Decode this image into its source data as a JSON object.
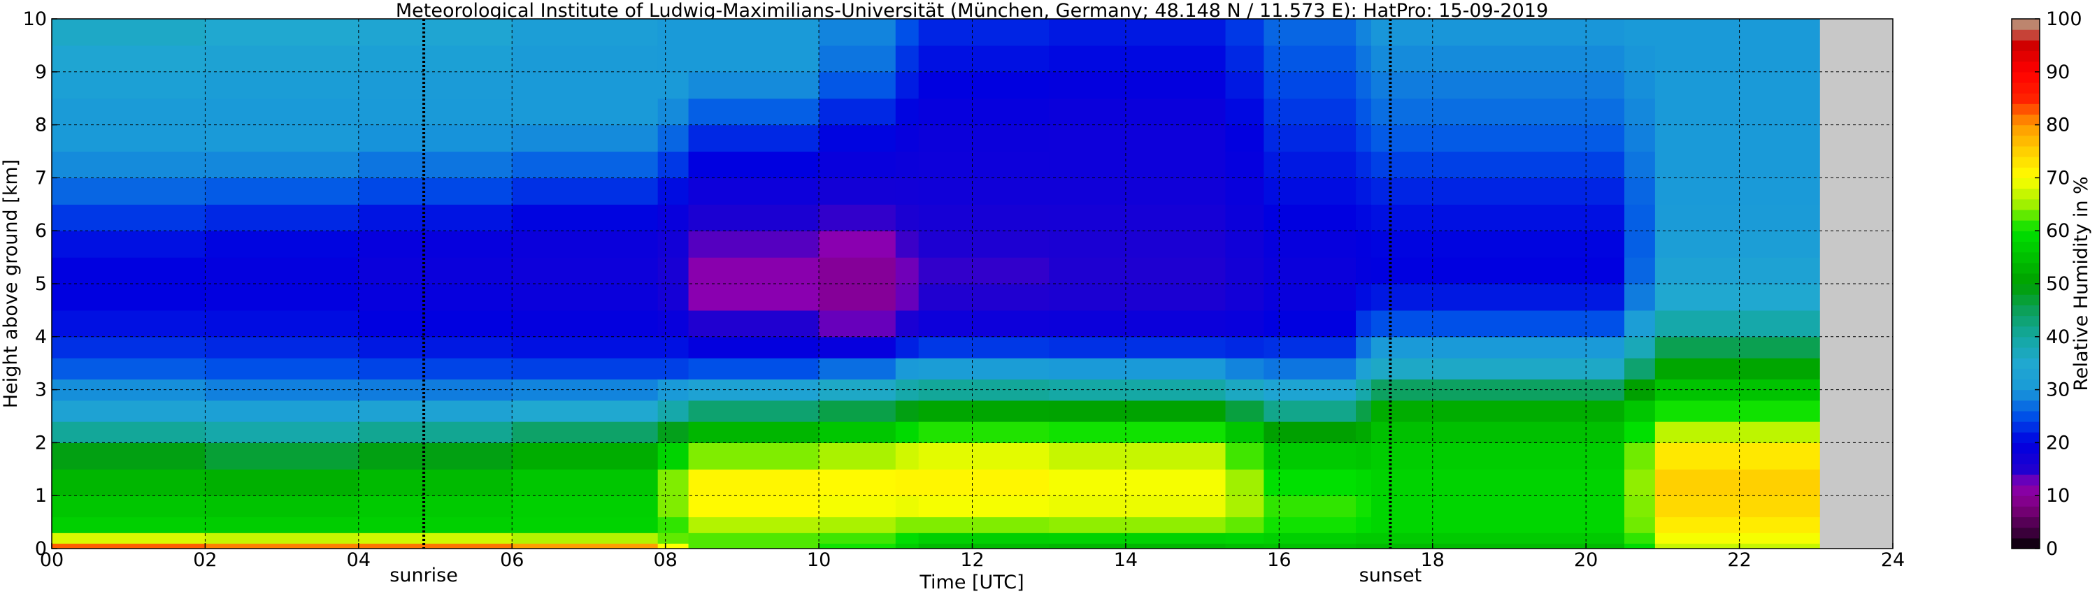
{
  "chart_data": {
    "type": "heatmap",
    "title": "Meteorological Institute of Ludwig-Maximilians-Universität (München, Germany; 48.148 N / 11.573 E):    HatPro: 15-09-2019",
    "xlabel": "Time [UTC]",
    "ylabel": "Height above ground [km]",
    "colorbar_label": "Relative Humidity in %",
    "xlim": [
      0,
      24
    ],
    "ylim": [
      0,
      10
    ],
    "x_ticks": [
      "00",
      "02",
      "04",
      "06",
      "08",
      "10",
      "12",
      "14",
      "16",
      "18",
      "20",
      "22",
      "24"
    ],
    "y_ticks": [
      "0",
      "1",
      "2",
      "3",
      "4",
      "5",
      "6",
      "7",
      "8",
      "9",
      "10"
    ],
    "colorbar_ticks": [
      "0",
      "10",
      "20",
      "30",
      "40",
      "50",
      "60",
      "70",
      "80",
      "90",
      "100"
    ],
    "colorbar_range": [
      0,
      100
    ],
    "annotations": [
      {
        "text": "sunrise",
        "x": 4.85
      },
      {
        "text": "sunset",
        "x": 17.45
      }
    ],
    "data_end_time": 23.05,
    "missing_color": "#c8c8c8",
    "grid": true,
    "heights_km": [
      0,
      0.1,
      0.3,
      0.6,
      1.0,
      1.5,
      2.0,
      2.4,
      2.8,
      3.2,
      3.6,
      4.0,
      4.5,
      5.0,
      5.5,
      6.0,
      6.5,
      7.0,
      7.5,
      8.0,
      8.5,
      9.0,
      9.5,
      10
    ],
    "profiles": [
      {
        "time": 0.0,
        "rh": [
          88,
          80,
          58,
          58,
          56,
          54,
          48,
          36,
          32,
          28,
          24,
          22,
          20,
          20,
          20,
          22,
          26,
          28,
          30,
          30,
          32,
          34,
          36,
          38
        ]
      },
      {
        "time": 2.0,
        "rh": [
          86,
          76,
          58,
          56,
          54,
          50,
          44,
          34,
          30,
          27,
          24,
          22,
          20,
          20,
          20,
          22,
          24,
          28,
          30,
          30,
          30,
          32,
          34,
          36
        ]
      },
      {
        "time": 4.0,
        "rh": [
          86,
          76,
          58,
          56,
          56,
          50,
          44,
          34,
          30,
          26,
          23,
          21,
          20,
          19,
          19,
          20,
          24,
          27,
          30,
          30,
          30,
          32,
          34,
          36
        ]
      },
      {
        "time": 6.0,
        "rh": [
          86,
          78,
          58,
          58,
          56,
          54,
          48,
          38,
          30,
          26,
          22,
          20,
          19,
          18,
          18,
          19,
          22,
          25,
          28,
          30,
          30,
          30,
          32,
          33
        ]
      },
      {
        "time": 7.9,
        "rh": [
          84,
          70,
          58,
          58,
          58,
          56,
          50,
          40,
          32,
          26,
          22,
          20,
          19,
          18,
          18,
          19,
          21,
          24,
          28,
          30,
          30,
          30,
          30,
          30
        ]
      },
      {
        "time": 8.3,
        "rh": [
          64,
          62,
          62,
          68,
          72,
          70,
          56,
          48,
          36,
          26,
          22,
          20,
          16,
          14,
          15,
          17,
          18,
          20,
          22,
          26,
          30,
          30,
          30,
          30
        ]
      },
      {
        "time": 10.0,
        "rh": [
          62,
          62,
          64,
          70,
          72,
          70,
          60,
          50,
          40,
          30,
          22,
          14,
          10,
          8,
          10,
          12,
          16,
          18,
          20,
          22,
          26,
          30,
          30,
          30
        ]
      },
      {
        "time": 11.0,
        "rh": [
          58,
          60,
          62,
          66,
          70,
          70,
          62,
          52,
          42,
          32,
          24,
          16,
          12,
          10,
          12,
          14,
          16,
          18,
          19,
          20,
          22,
          24,
          26,
          28
        ]
      },
      {
        "time": 11.3,
        "rh": [
          54,
          56,
          60,
          68,
          72,
          72,
          66,
          56,
          46,
          36,
          28,
          20,
          16,
          14,
          15,
          16,
          17,
          18,
          18,
          19,
          20,
          21,
          22,
          24
        ]
      },
      {
        "time": 13.0,
        "rh": [
          52,
          54,
          60,
          68,
          70,
          70,
          66,
          56,
          46,
          34,
          26,
          20,
          16,
          14,
          15,
          16,
          17,
          18,
          18,
          18,
          19,
          20,
          21,
          22
        ]
      },
      {
        "time": 15.3,
        "rh": [
          52,
          56,
          62,
          68,
          70,
          68,
          64,
          56,
          44,
          34,
          26,
          20,
          17,
          16,
          16,
          17,
          17,
          18,
          18,
          18,
          19,
          20,
          21,
          22
        ]
      },
      {
        "time": 15.8,
        "rh": [
          54,
          56,
          60,
          62,
          62,
          60,
          56,
          48,
          38,
          30,
          24,
          20,
          18,
          18,
          18,
          19,
          20,
          20,
          21,
          22,
          23,
          24,
          25,
          26
        ]
      },
      {
        "time": 17.0,
        "rh": [
          54,
          56,
          58,
          62,
          60,
          58,
          52,
          44,
          36,
          30,
          26,
          22,
          20,
          19,
          19,
          20,
          21,
          22,
          23,
          24,
          25,
          26,
          27,
          28
        ]
      },
      {
        "time": 17.2,
        "rh": [
          52,
          54,
          58,
          60,
          60,
          58,
          56,
          54,
          50,
          40,
          34,
          28,
          24,
          20,
          20,
          20,
          21,
          22,
          24,
          26,
          27,
          28,
          29,
          30
        ]
      },
      {
        "time": 20.5,
        "rh": [
          54,
          56,
          58,
          58,
          56,
          58,
          56,
          54,
          50,
          38,
          32,
          26,
          22,
          20,
          20,
          21,
          22,
          24,
          26,
          27,
          28,
          29,
          30,
          30
        ]
      },
      {
        "time": 20.9,
        "rh": [
          62,
          64,
          68,
          70,
          72,
          72,
          68,
          62,
          58,
          54,
          50,
          42,
          36,
          34,
          32,
          31,
          30,
          30,
          30,
          30,
          30,
          30,
          30,
          30
        ]
      },
      {
        "time": 23.05,
        "rh": [
          70,
          72,
          74,
          76,
          78,
          78,
          72,
          64,
          58,
          52,
          48,
          42,
          36,
          34,
          32,
          31,
          30,
          30,
          30,
          30,
          30,
          30,
          30,
          30
        ]
      }
    ]
  }
}
